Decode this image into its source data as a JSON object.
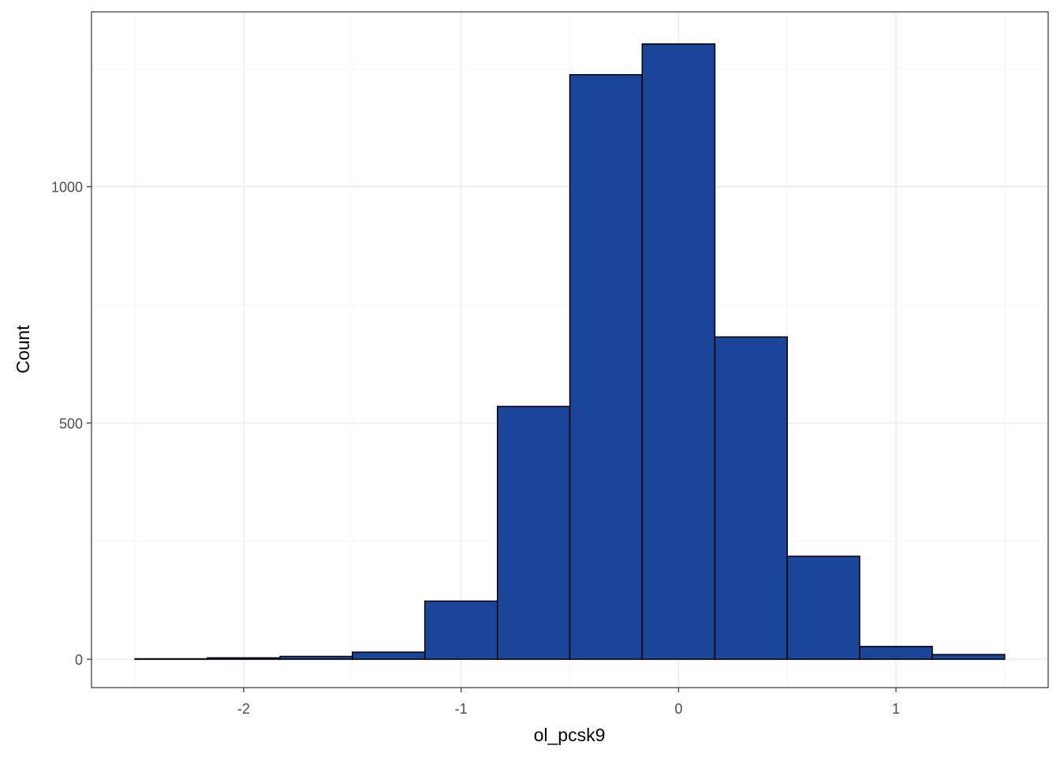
{
  "chart_data": {
    "type": "bar",
    "subtype": "histogram",
    "title": "",
    "xlabel": "ol_pcsk9",
    "ylabel": "Count",
    "xlim": [
      -2.7,
      1.7
    ],
    "ylim": [
      -60,
      1370
    ],
    "x_ticks": [
      -2,
      -1,
      0,
      1
    ],
    "x_tick_labels": [
      "-2",
      "-1",
      "0",
      "1"
    ],
    "y_ticks": [
      0,
      500,
      1000
    ],
    "y_tick_labels": [
      "0",
      "500",
      "1000"
    ],
    "y_minor_ticks": [
      250,
      750,
      1250
    ],
    "x_minor_ticks": [
      -2.5,
      -1.5,
      -0.5,
      0.5,
      1.5
    ],
    "grid": true,
    "bins": [
      {
        "x0": -2.5,
        "x1": -2.167,
        "count": 1
      },
      {
        "x0": -2.167,
        "x1": -1.833,
        "count": 3
      },
      {
        "x0": -1.833,
        "x1": -1.5,
        "count": 6
      },
      {
        "x0": -1.5,
        "x1": -1.167,
        "count": 15
      },
      {
        "x0": -1.167,
        "x1": -0.833,
        "count": 123
      },
      {
        "x0": -0.833,
        "x1": -0.5,
        "count": 535
      },
      {
        "x0": -0.5,
        "x1": -0.167,
        "count": 1237
      },
      {
        "x0": -0.167,
        "x1": 0.167,
        "count": 1302
      },
      {
        "x0": 0.167,
        "x1": 0.5,
        "count": 682
      },
      {
        "x0": 0.5,
        "x1": 0.833,
        "count": 218
      },
      {
        "x0": 0.833,
        "x1": 1.167,
        "count": 27
      },
      {
        "x0": 1.167,
        "x1": 1.5,
        "count": 10
      }
    ],
    "colors": {
      "fill": "#1a4599",
      "stroke": "#000000",
      "grid_major": "#ebebeb",
      "grid_minor": "#f5f5f5",
      "panel_border": "#333333"
    }
  }
}
